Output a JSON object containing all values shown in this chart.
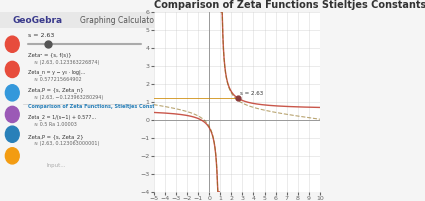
{
  "title": "Comparison of Zeta Functions Stieltjes Constants",
  "title_fontsize": 7,
  "title_color": "#333333",
  "bg_color": "#f5f5f5",
  "graph_bg": "#ffffff",
  "grid_color": "#cccccc",
  "sidebar_bg": "#f8f8f8",
  "curve1_color": "#c0392b",
  "curve2_color": "#8b6914",
  "slider_color": "#555555",
  "dot_color": "#8b3a3a",
  "point_label": "s = 2.63",
  "xmin": -5,
  "xmax": 10,
  "ymin": -4,
  "ymax": 6,
  "slider_val": 2.63,
  "slider_min": 1,
  "slider_max": 10,
  "tick_fontsize": 4.5
}
